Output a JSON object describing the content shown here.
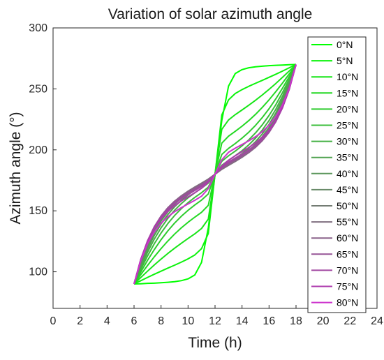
{
  "chart_data": {
    "type": "line",
    "title": "Variation of solar azimuth angle",
    "xlabel": "Time (h)",
    "ylabel": "Azimuth angle (°)",
    "xlim": [
      0,
      24
    ],
    "ylim": [
      70,
      300
    ],
    "xticks": [
      "0",
      "2",
      "4",
      "6",
      "8",
      "10",
      "12",
      "14",
      "16",
      "18",
      "20",
      "22",
      "24"
    ],
    "yticks": [
      "100",
      "150",
      "200",
      "250",
      "300"
    ],
    "grid": false,
    "legend_position": "right",
    "x": [
      6,
      6.5,
      7,
      7.5,
      8,
      8.5,
      9,
      9.5,
      10,
      10.5,
      11,
      11.5,
      12,
      12.5,
      13,
      13.5,
      14,
      14.5,
      15,
      15.5,
      16,
      16.5,
      17,
      17.5,
      18
    ],
    "series": [
      {
        "name": "0°N",
        "color": "#00ff00",
        "values": [
          90.0,
          90.2,
          90.5,
          90.7,
          91.0,
          91.4,
          91.9,
          92.7,
          94.2,
          97.4,
          107.7,
          136.0,
          180.0,
          224.0,
          252.3,
          262.6,
          265.8,
          267.3,
          268.1,
          268.6,
          269.0,
          269.3,
          269.5,
          269.8,
          270.0
        ]
      },
      {
        "name": "5°N",
        "color": "#0cf20c",
        "values": [
          90.0,
          92.7,
          95.4,
          98.0,
          100.5,
          103.0,
          105.4,
          107.9,
          110.6,
          113.8,
          119.0,
          131.4,
          180.0,
          228.6,
          241.0,
          246.2,
          249.4,
          252.1,
          254.6,
          257.0,
          259.5,
          262.0,
          264.6,
          267.3,
          270.0
        ]
      },
      {
        "name": "10°N",
        "color": "#17e517",
        "values": [
          90.0,
          95.3,
          100.5,
          105.6,
          110.4,
          115.0,
          119.3,
          123.4,
          127.3,
          131.1,
          135.5,
          143.2,
          180.0,
          216.8,
          224.5,
          228.9,
          232.7,
          236.6,
          240.7,
          245.0,
          249.6,
          254.4,
          259.5,
          264.7,
          270.0
        ]
      },
      {
        "name": "15°N",
        "color": "#23d823",
        "values": [
          90.0,
          97.7,
          105.2,
          112.3,
          119.0,
          125.2,
          130.9,
          136.0,
          140.6,
          144.8,
          148.8,
          154.5,
          180.0,
          205.5,
          211.2,
          215.2,
          219.4,
          224.0,
          229.1,
          234.8,
          241.0,
          247.7,
          254.8,
          262.3,
          270.0
        ]
      },
      {
        "name": "20°N",
        "color": "#2ecb2e",
        "values": [
          90.0,
          99.9,
          109.4,
          118.2,
          126.3,
          133.5,
          139.9,
          145.5,
          150.4,
          154.8,
          158.8,
          163.8,
          180.0,
          196.2,
          201.2,
          205.2,
          209.6,
          214.5,
          220.1,
          226.5,
          233.7,
          241.8,
          250.6,
          260.1,
          270.0
        ]
      },
      {
        "name": "25°N",
        "color": "#3abd3a",
        "values": [
          90.0,
          101.9,
          113.0,
          123.0,
          131.8,
          139.5,
          146.1,
          151.8,
          156.7,
          161.0,
          164.9,
          169.4,
          180.0,
          190.6,
          195.1,
          199.0,
          203.3,
          208.2,
          213.9,
          220.5,
          228.2,
          237.0,
          247.0,
          258.1,
          270.0
        ]
      },
      {
        "name": "30°N",
        "color": "#45b045",
        "values": [
          90.0,
          103.6,
          116.0,
          126.8,
          136.0,
          143.8,
          150.4,
          155.9,
          160.7,
          164.8,
          168.6,
          172.7,
          180.0,
          187.3,
          191.4,
          195.2,
          199.3,
          204.1,
          209.6,
          216.2,
          224.0,
          233.2,
          244.0,
          256.4,
          270.0
        ]
      },
      {
        "name": "35°N",
        "color": "#51a351",
        "values": [
          90.0,
          105.0,
          118.4,
          129.8,
          139.2,
          146.9,
          153.3,
          158.6,
          163.1,
          167.1,
          170.7,
          174.5,
          180.0,
          185.5,
          189.3,
          192.9,
          196.9,
          201.4,
          206.7,
          213.1,
          220.8,
          230.2,
          241.6,
          255.0,
          270.0
        ]
      },
      {
        "name": "40°N",
        "color": "#5c965c",
        "values": [
          90.0,
          106.2,
          120.4,
          132.1,
          141.6,
          149.2,
          155.4,
          160.4,
          164.7,
          168.5,
          172.0,
          175.6,
          180.0,
          184.4,
          188.0,
          191.5,
          195.3,
          199.6,
          204.6,
          210.8,
          218.4,
          227.9,
          239.6,
          253.8,
          270.0
        ]
      },
      {
        "name": "45°N",
        "color": "#688968",
        "values": [
          90.0,
          107.3,
          122.0,
          133.9,
          143.4,
          150.8,
          156.7,
          161.5,
          165.6,
          169.2,
          172.5,
          175.9,
          180.0,
          184.1,
          187.5,
          190.8,
          194.4,
          198.5,
          203.3,
          209.2,
          216.6,
          226.1,
          238.0,
          252.7,
          270.0
        ]
      },
      {
        "name": "50°N",
        "color": "#737c73",
        "values": [
          90.0,
          108.2,
          123.3,
          135.3,
          144.6,
          151.8,
          157.5,
          162.1,
          166.0,
          169.5,
          172.7,
          176.0,
          180.0,
          184.0,
          187.3,
          190.5,
          194.0,
          197.9,
          202.5,
          208.2,
          215.4,
          224.7,
          236.7,
          251.8,
          270.0
        ]
      },
      {
        "name": "55°N",
        "color": "#7f6f7f",
        "values": [
          90.0,
          109.0,
          124.3,
          136.2,
          145.4,
          152.4,
          157.9,
          162.3,
          166.1,
          169.4,
          172.5,
          175.8,
          180.0,
          184.2,
          187.5,
          190.6,
          193.9,
          197.7,
          202.1,
          207.6,
          214.6,
          223.8,
          235.7,
          251.0,
          270.0
        ]
      },
      {
        "name": "60°N",
        "color": "#8a628a",
        "values": [
          90.0,
          109.6,
          125.0,
          136.8,
          145.7,
          152.5,
          157.8,
          162.0,
          165.6,
          168.8,
          171.9,
          175.4,
          180.0,
          184.6,
          188.1,
          191.2,
          194.4,
          198.0,
          202.2,
          207.5,
          214.3,
          223.2,
          235.0,
          250.4,
          270.0
        ]
      },
      {
        "name": "65°N",
        "color": "#965496",
        "values": [
          90.0,
          110.0,
          125.4,
          137.0,
          145.6,
          152.1,
          157.2,
          161.3,
          164.8,
          167.9,
          171.1,
          174.9,
          180.0,
          185.1,
          188.9,
          192.1,
          195.2,
          198.7,
          202.8,
          207.9,
          214.4,
          223.0,
          234.6,
          250.0,
          270.0
        ]
      },
      {
        "name": "70°N",
        "color": "#a147a1",
        "values": [
          90.0,
          110.3,
          125.4,
          136.6,
          144.9,
          151.2,
          156.1,
          160.0,
          163.5,
          166.7,
          170.0,
          174.3,
          180.0,
          185.7,
          190.0,
          193.3,
          196.5,
          200.0,
          203.9,
          208.8,
          215.1,
          223.4,
          234.6,
          249.7,
          270.0
        ]
      },
      {
        "name": "75°N",
        "color": "#ad3aad",
        "values": [
          90.0,
          110.3,
          125.1,
          135.8,
          143.6,
          149.6,
          154.2,
          158.1,
          161.5,
          164.8,
          168.5,
          173.4,
          180.0,
          186.6,
          191.5,
          195.2,
          198.5,
          201.9,
          205.8,
          210.4,
          216.4,
          224.2,
          234.9,
          249.7,
          270.0
        ]
      },
      {
        "name": "80°N",
        "color": "#cc33cc",
        "values": [
          90.0,
          109.4,
          123.1,
          132.8,
          139.8,
          145.1,
          149.2,
          152.6,
          155.6,
          158.6,
          162.0,
          168.2,
          180.0,
          191.8,
          198.0,
          201.4,
          204.4,
          207.4,
          210.8,
          214.9,
          220.2,
          227.2,
          236.9,
          250.6,
          270.0
        ]
      }
    ]
  }
}
